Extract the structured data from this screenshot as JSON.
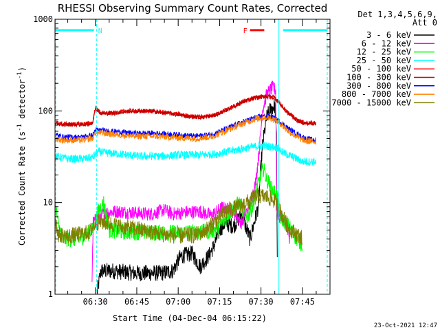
{
  "chart_data": {
    "type": "line",
    "title": "RHESSI Observing Summary Count Rates, Corrected",
    "xlabel": "Start Time (04-Dec-04 06:15:22)",
    "ylabel_main": "Corrected Count Rate (s",
    "ylabel_sup1": "-1",
    "ylabel_mid": " detector",
    "ylabel_sup2": "-1",
    "ylabel_end": ")",
    "yscale": "log",
    "ylim": [
      1,
      1000
    ],
    "xlim_minutes": [
      375.37,
      475.0
    ],
    "yticks": [
      {
        "value": 1,
        "label": "1"
      },
      {
        "value": 10,
        "label": "10"
      },
      {
        "value": 100,
        "label": "100"
      },
      {
        "value": 1000,
        "label": "1000"
      }
    ],
    "xticks": [
      {
        "minute": 390,
        "label": "06:30"
      },
      {
        "minute": 405,
        "label": "06:45"
      },
      {
        "minute": 420,
        "label": "07:00"
      },
      {
        "minute": 435,
        "label": "07:15"
      },
      {
        "minute": 450,
        "label": "07:30"
      },
      {
        "minute": 465,
        "label": "07:45"
      }
    ],
    "legend_header": [
      "Det 1,3,4,5,6,9,",
      "Att 0"
    ],
    "legend_position": "right",
    "series": [
      {
        "name": "3 - 6 keV",
        "color": "#000000",
        "noise": 0.03,
        "points": [
          [
            390.5,
            1
          ],
          [
            392,
            1.8
          ],
          [
            396,
            1.8
          ],
          [
            404,
            1.7
          ],
          [
            414,
            1.7
          ],
          [
            418,
            1.8
          ],
          [
            421,
            2.6
          ],
          [
            425,
            2.8
          ],
          [
            428,
            2
          ],
          [
            431,
            2.6
          ],
          [
            433,
            3.4
          ],
          [
            435,
            5
          ],
          [
            437,
            6
          ],
          [
            440,
            5.5
          ],
          [
            443,
            7.5
          ],
          [
            446,
            4
          ],
          [
            449,
            9
          ],
          [
            450.5,
            40
          ],
          [
            452,
            85
          ],
          [
            453.5,
            105
          ],
          [
            455,
            115
          ],
          [
            455.6,
            50
          ],
          [
            456,
            1
          ]
        ]
      },
      {
        "name": "6 - 12 keV",
        "color": "#ff00ff",
        "noise": 0.025,
        "points": [
          [
            388.7,
            1
          ],
          [
            389.2,
            6
          ],
          [
            391,
            7
          ],
          [
            394,
            7.8
          ],
          [
            398,
            8
          ],
          [
            403,
            7.8
          ],
          [
            410,
            7.5
          ],
          [
            415,
            8.3
          ],
          [
            418,
            7.5
          ],
          [
            422,
            7.8
          ],
          [
            428,
            8
          ],
          [
            432,
            7.2
          ],
          [
            436,
            8.8
          ],
          [
            440,
            8
          ],
          [
            443,
            6
          ],
          [
            446,
            9.5
          ],
          [
            448,
            16
          ],
          [
            449.5,
            40
          ],
          [
            450.5,
            100
          ],
          [
            452,
            150
          ],
          [
            454,
            180
          ],
          [
            455.3,
            170
          ],
          [
            455.8,
            8
          ],
          [
            456.5,
            7
          ],
          [
            459,
            6
          ],
          [
            460.5,
            4
          ]
        ]
      },
      {
        "name": "12 - 25 keV",
        "color": "#00ff00",
        "noise": 0.03,
        "points": [
          [
            375.4,
            10
          ],
          [
            376.5,
            6
          ],
          [
            378,
            4
          ],
          [
            384,
            4
          ],
          [
            389,
            5
          ],
          [
            391,
            8
          ],
          [
            393,
            10
          ],
          [
            395,
            5
          ],
          [
            400,
            4.8
          ],
          [
            410,
            4.7
          ],
          [
            420,
            4.7
          ],
          [
            430,
            4.8
          ],
          [
            433,
            5
          ],
          [
            436,
            6
          ],
          [
            439,
            8
          ],
          [
            442,
            10
          ],
          [
            445,
            7
          ],
          [
            447,
            9
          ],
          [
            448.5,
            14
          ],
          [
            450,
            20
          ],
          [
            451,
            24
          ],
          [
            452,
            18
          ],
          [
            454,
            14
          ],
          [
            455.8,
            12
          ],
          [
            457,
            7
          ],
          [
            459,
            6
          ],
          [
            461,
            5
          ],
          [
            463,
            4
          ],
          [
            465,
            3.5
          ]
        ]
      },
      {
        "name": "25 - 50 keV",
        "color": "#00ffff",
        "noise": 0.015,
        "points": [
          [
            375.4,
            32
          ],
          [
            380,
            30
          ],
          [
            386,
            30
          ],
          [
            389,
            31
          ],
          [
            391,
            36
          ],
          [
            393,
            35
          ],
          [
            398,
            34
          ],
          [
            406,
            32
          ],
          [
            414,
            32
          ],
          [
            420,
            33
          ],
          [
            428,
            33
          ],
          [
            434,
            34
          ],
          [
            438,
            36
          ],
          [
            442,
            38
          ],
          [
            446,
            40
          ],
          [
            450,
            42
          ],
          [
            453,
            41
          ],
          [
            456,
            40
          ],
          [
            458,
            35
          ],
          [
            461,
            32
          ],
          [
            465,
            28
          ],
          [
            470,
            28
          ]
        ]
      },
      {
        "name": "50 - 100 keV",
        "color": "#ff0000",
        "noise": 0.008,
        "points": [
          [
            375.4,
            75
          ],
          [
            378,
            72
          ],
          [
            385,
            72
          ],
          [
            389,
            74
          ],
          [
            390,
            110
          ],
          [
            392,
            95
          ],
          [
            396,
            95
          ],
          [
            402,
            100
          ],
          [
            410,
            100
          ],
          [
            418,
            94
          ],
          [
            424,
            88
          ],
          [
            428,
            86
          ],
          [
            433,
            90
          ],
          [
            438,
            105
          ],
          [
            443,
            125
          ],
          [
            448,
            140
          ],
          [
            452,
            145
          ],
          [
            455,
            140
          ],
          [
            457,
            120
          ],
          [
            459,
            100
          ],
          [
            461,
            90
          ],
          [
            463,
            80
          ],
          [
            466,
            74
          ],
          [
            470,
            74
          ]
        ]
      },
      {
        "name": "100 - 300 keV",
        "color": "#c00000",
        "noise": 0.008,
        "points": [
          [
            375.4,
            74
          ],
          [
            378,
            71
          ],
          [
            385,
            71
          ],
          [
            389,
            73
          ],
          [
            390,
            108
          ],
          [
            392,
            94
          ],
          [
            396,
            94
          ],
          [
            402,
            99
          ],
          [
            410,
            99
          ],
          [
            418,
            93
          ],
          [
            424,
            87
          ],
          [
            428,
            85
          ],
          [
            433,
            89
          ],
          [
            438,
            104
          ],
          [
            443,
            124
          ],
          [
            448,
            139
          ],
          [
            452,
            144
          ],
          [
            455,
            139
          ],
          [
            457,
            119
          ],
          [
            459,
            99
          ],
          [
            461,
            89
          ],
          [
            463,
            79
          ],
          [
            466,
            73
          ],
          [
            470,
            73
          ]
        ]
      },
      {
        "name": "300 - 800 keV",
        "color": "#0000ff",
        "noise": 0.01,
        "points": [
          [
            375.4,
            55
          ],
          [
            378,
            52
          ],
          [
            385,
            52
          ],
          [
            389,
            54
          ],
          [
            390,
            62
          ],
          [
            396,
            60
          ],
          [
            404,
            57
          ],
          [
            412,
            57
          ],
          [
            420,
            55
          ],
          [
            426,
            53
          ],
          [
            432,
            55
          ],
          [
            437,
            63
          ],
          [
            442,
            73
          ],
          [
            447,
            83
          ],
          [
            451,
            88
          ],
          [
            454,
            86
          ],
          [
            457,
            76
          ],
          [
            460,
            64
          ],
          [
            463,
            56
          ],
          [
            466,
            50
          ],
          [
            470,
            48
          ]
        ]
      },
      {
        "name": "800 - 7000 keV",
        "color": "#ff8000",
        "noise": 0.012,
        "points": [
          [
            375.4,
            50
          ],
          [
            378,
            48
          ],
          [
            385,
            48
          ],
          [
            389,
            50
          ],
          [
            390,
            58
          ],
          [
            396,
            56
          ],
          [
            404,
            53
          ],
          [
            412,
            53
          ],
          [
            420,
            51
          ],
          [
            426,
            50
          ],
          [
            432,
            52
          ],
          [
            437,
            60
          ],
          [
            442,
            70
          ],
          [
            447,
            80
          ],
          [
            451,
            85
          ],
          [
            454,
            83
          ],
          [
            457,
            73
          ],
          [
            460,
            60
          ],
          [
            463,
            52
          ],
          [
            466,
            47
          ],
          [
            470,
            46
          ]
        ]
      },
      {
        "name": "7000 - 15000 keV",
        "color": "#808000",
        "noise": 0.03,
        "points": [
          [
            375.4,
            7
          ],
          [
            376.5,
            4.5
          ],
          [
            380,
            4.3
          ],
          [
            386,
            4.6
          ],
          [
            388,
            4.8
          ],
          [
            390,
            6
          ],
          [
            392,
            6.2
          ],
          [
            396,
            5.8
          ],
          [
            400,
            5.4
          ],
          [
            405,
            5.2
          ],
          [
            410,
            4.8
          ],
          [
            415,
            4.5
          ],
          [
            420,
            4.3
          ],
          [
            426,
            4.4
          ],
          [
            430,
            5
          ],
          [
            433,
            6
          ],
          [
            436,
            7.5
          ],
          [
            439,
            8.5
          ],
          [
            442,
            9
          ],
          [
            446,
            10.5
          ],
          [
            449,
            12
          ],
          [
            452,
            11.5
          ],
          [
            455,
            10.5
          ],
          [
            457,
            8
          ],
          [
            459,
            6
          ],
          [
            461,
            5
          ],
          [
            463,
            4.5
          ],
          [
            465,
            4
          ]
        ]
      }
    ],
    "overlays": [
      {
        "label": "N",
        "color": "#00ffff",
        "level": 760,
        "segments": [
          [
            375.6,
            389.5
          ],
          [
            458,
            474
          ]
        ]
      },
      {
        "label": "F",
        "color": "#ff0000",
        "level": 760,
        "segments": [
          [
            446,
            451.2
          ]
        ]
      }
    ],
    "vlines_minutes": [
      375.6,
      390.5,
      456.5,
      474
    ]
  },
  "timestamp": "23-Oct-2021 12:47"
}
